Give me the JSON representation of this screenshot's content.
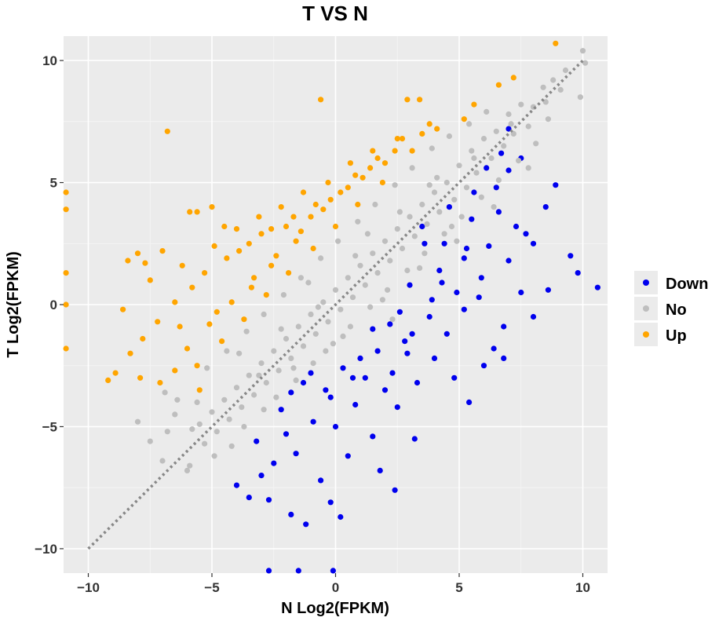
{
  "chart_data": {
    "type": "scatter",
    "title": "T VS N",
    "xlabel": "N  Log2(FPKM)",
    "ylabel": "T  Log2(FPKM)",
    "xlim": [
      -11,
      11
    ],
    "ylim": [
      -11,
      11
    ],
    "xticks": [
      -10,
      -5,
      0,
      5,
      10
    ],
    "yticks": [
      -10,
      -5,
      0,
      5,
      10
    ],
    "xtick_labels": [
      "−10",
      "−5",
      "0",
      "5",
      "10"
    ],
    "ytick_labels": [
      "−10",
      "−5",
      "0",
      "5",
      "10"
    ],
    "grid": true,
    "reference_line": {
      "type": "diagonal",
      "slope": 1,
      "intercept": 0,
      "style": "dotted",
      "color": "#888888"
    },
    "legend": {
      "position": "right"
    },
    "series": [
      {
        "name": "Down",
        "color": "#0000EE",
        "points": [
          [
            10.6,
            0.7
          ],
          [
            9.8,
            1.3
          ],
          [
            9.5,
            2.0
          ],
          [
            8.6,
            0.6
          ],
          [
            8.5,
            4.0
          ],
          [
            8.0,
            2.5
          ],
          [
            8.0,
            -0.5
          ],
          [
            7.7,
            2.9
          ],
          [
            7.0,
            7.2
          ],
          [
            7.0,
            5.5
          ],
          [
            6.7,
            6.2
          ],
          [
            6.5,
            4.8
          ],
          [
            7.3,
            3.2
          ],
          [
            7.0,
            1.8
          ],
          [
            7.5,
            0.5
          ],
          [
            6.8,
            -0.9
          ],
          [
            6.4,
            -1.8
          ],
          [
            6.0,
            -2.5
          ],
          [
            5.8,
            0.3
          ],
          [
            6.2,
            2.4
          ],
          [
            5.5,
            3.5
          ],
          [
            5.2,
            1.9
          ],
          [
            4.9,
            0.5
          ],
          [
            4.5,
            -1.2
          ],
          [
            4.8,
            -3.0
          ],
          [
            4.0,
            -2.2
          ],
          [
            3.8,
            -0.5
          ],
          [
            4.2,
            1.4
          ],
          [
            3.6,
            2.5
          ],
          [
            3.0,
            0.8
          ],
          [
            2.8,
            -1.5
          ],
          [
            3.3,
            -3.2
          ],
          [
            2.5,
            -4.2
          ],
          [
            2.9,
            -2.0
          ],
          [
            2.2,
            -0.8
          ],
          [
            1.7,
            -1.9
          ],
          [
            2.0,
            -3.5
          ],
          [
            1.5,
            -5.4
          ],
          [
            1.2,
            -3.0
          ],
          [
            0.8,
            -4.1
          ],
          [
            0.3,
            -2.6
          ],
          [
            0.5,
            -6.2
          ],
          [
            0.0,
            -5.0
          ],
          [
            -0.4,
            -3.5
          ],
          [
            -0.6,
            -7.2
          ],
          [
            -0.2,
            -8.1
          ],
          [
            0.2,
            -8.7
          ],
          [
            -0.9,
            -4.8
          ],
          [
            -1.3,
            -3.2
          ],
          [
            -1.6,
            -6.1
          ],
          [
            -1.8,
            -8.6
          ],
          [
            -2.0,
            -5.3
          ],
          [
            -2.5,
            -6.5
          ],
          [
            -2.7,
            -8.0
          ],
          [
            -3.0,
            -7.0
          ],
          [
            -3.2,
            -5.6
          ],
          [
            -3.5,
            -7.9
          ],
          [
            -4.0,
            -7.4
          ],
          [
            -1.2,
            -9.0
          ],
          [
            -1.5,
            -10.9
          ],
          [
            -0.1,
            -10.9
          ],
          [
            -2.7,
            -10.9
          ],
          [
            3.2,
            -5.5
          ],
          [
            2.4,
            -7.6
          ],
          [
            1.8,
            -6.8
          ],
          [
            5.4,
            -4.0
          ],
          [
            6.8,
            -2.2
          ],
          [
            5.2,
            -0.2
          ],
          [
            4.4,
            2.5
          ],
          [
            3.5,
            3.2
          ],
          [
            4.6,
            4.0
          ],
          [
            5.6,
            4.6
          ],
          [
            6.1,
            5.6
          ],
          [
            7.5,
            6.0
          ],
          [
            8.9,
            4.9
          ],
          [
            3.9,
            0.2
          ],
          [
            2.6,
            -0.3
          ],
          [
            1.5,
            -1.0
          ],
          [
            1.0,
            -2.2
          ],
          [
            -0.2,
            -3.8
          ],
          [
            -1.0,
            -2.8
          ],
          [
            -2.2,
            -4.3
          ],
          [
            -1.8,
            -3.6
          ],
          [
            0.7,
            -3.0
          ],
          [
            2.3,
            -2.8
          ],
          [
            3.1,
            -1.2
          ],
          [
            4.3,
            0.9
          ],
          [
            5.3,
            2.3
          ],
          [
            6.6,
            3.8
          ],
          [
            5.9,
            1.1
          ]
        ]
      },
      {
        "name": "No",
        "color": "#BEBEBE",
        "points": [
          [
            10.0,
            10.4
          ],
          [
            10.1,
            9.9
          ],
          [
            9.9,
            8.5
          ],
          [
            9.3,
            9.6
          ],
          [
            8.8,
            9.2
          ],
          [
            8.5,
            8.3
          ],
          [
            8.4,
            8.9
          ],
          [
            8.0,
            8.1
          ],
          [
            7.8,
            7.3
          ],
          [
            7.5,
            8.2
          ],
          [
            7.2,
            7.0
          ],
          [
            7.0,
            7.8
          ],
          [
            6.8,
            6.5
          ],
          [
            6.5,
            7.1
          ],
          [
            6.3,
            6.0
          ],
          [
            6.0,
            6.8
          ],
          [
            5.7,
            5.4
          ],
          [
            5.5,
            6.3
          ],
          [
            5.3,
            4.8
          ],
          [
            5.0,
            5.7
          ],
          [
            4.8,
            4.3
          ],
          [
            4.5,
            5.0
          ],
          [
            4.2,
            3.8
          ],
          [
            4.0,
            4.6
          ],
          [
            3.7,
            3.3
          ],
          [
            3.5,
            4.1
          ],
          [
            3.2,
            2.8
          ],
          [
            3.0,
            3.6
          ],
          [
            2.7,
            2.3
          ],
          [
            2.5,
            3.1
          ],
          [
            2.2,
            1.8
          ],
          [
            2.0,
            2.6
          ],
          [
            1.7,
            1.3
          ],
          [
            1.5,
            2.1
          ],
          [
            1.2,
            0.8
          ],
          [
            1.0,
            1.6
          ],
          [
            0.7,
            0.3
          ],
          [
            0.5,
            1.1
          ],
          [
            0.2,
            -0.2
          ],
          [
            0.0,
            0.6
          ],
          [
            -0.3,
            -0.7
          ],
          [
            -0.5,
            0.1
          ],
          [
            -0.8,
            -1.2
          ],
          [
            -1.0,
            -0.4
          ],
          [
            -1.3,
            -1.7
          ],
          [
            -1.5,
            -0.9
          ],
          [
            -1.8,
            -2.2
          ],
          [
            -2.0,
            -1.4
          ],
          [
            -2.3,
            -2.7
          ],
          [
            -2.5,
            -1.9
          ],
          [
            -2.8,
            -3.2
          ],
          [
            -3.0,
            -2.4
          ],
          [
            -3.3,
            -3.7
          ],
          [
            -3.5,
            -2.9
          ],
          [
            -3.8,
            -4.2
          ],
          [
            -4.0,
            -3.4
          ],
          [
            -4.3,
            -4.7
          ],
          [
            -4.5,
            -3.9
          ],
          [
            -4.8,
            -5.2
          ],
          [
            -5.0,
            -4.4
          ],
          [
            -5.3,
            -5.7
          ],
          [
            -5.5,
            -4.9
          ],
          [
            -5.8,
            -5.1
          ],
          [
            -6.0,
            -6.8
          ],
          [
            -6.5,
            -4.5
          ],
          [
            -6.8,
            -5.2
          ],
          [
            -7.0,
            -6.4
          ],
          [
            -5.6,
            -4.0
          ],
          [
            -4.2,
            -5.8
          ],
          [
            -3.7,
            -5.0
          ],
          [
            -2.9,
            -4.3
          ],
          [
            -2.4,
            -3.8
          ],
          [
            -1.6,
            -3.1
          ],
          [
            -0.9,
            -2.4
          ],
          [
            -0.1,
            -1.6
          ],
          [
            0.6,
            -0.9
          ],
          [
            1.4,
            -0.1
          ],
          [
            2.1,
            0.6
          ],
          [
            2.9,
            1.4
          ],
          [
            3.6,
            2.1
          ],
          [
            4.4,
            2.9
          ],
          [
            5.1,
            3.6
          ],
          [
            5.9,
            4.4
          ],
          [
            6.6,
            5.1
          ],
          [
            7.4,
            5.9
          ],
          [
            8.1,
            6.6
          ],
          [
            -5.2,
            -2.6
          ],
          [
            -4.4,
            -1.9
          ],
          [
            -3.6,
            -1.1
          ],
          [
            -2.9,
            -0.4
          ],
          [
            -2.1,
            0.4
          ],
          [
            -1.4,
            1.1
          ],
          [
            -0.6,
            1.9
          ],
          [
            0.1,
            2.6
          ],
          [
            0.9,
            3.4
          ],
          [
            1.6,
            4.1
          ],
          [
            2.4,
            4.9
          ],
          [
            3.1,
            5.6
          ],
          [
            3.9,
            6.4
          ],
          [
            4.6,
            6.9
          ],
          [
            5.4,
            7.4
          ],
          [
            6.1,
            7.9
          ],
          [
            -3.9,
            -2.0
          ],
          [
            -3.1,
            -2.9
          ],
          [
            -2.2,
            -1.0
          ],
          [
            -1.7,
            -2.6
          ],
          [
            -0.7,
            -0.1
          ],
          [
            0.3,
            -1.3
          ],
          [
            0.8,
            2.0
          ],
          [
            1.9,
            0.2
          ],
          [
            2.6,
            3.8
          ],
          [
            3.4,
            1.5
          ],
          [
            4.1,
            5.2
          ],
          [
            4.9,
            2.6
          ],
          [
            5.6,
            6.0
          ],
          [
            6.4,
            4.0
          ],
          [
            7.1,
            7.4
          ],
          [
            7.8,
            5.6
          ],
          [
            8.6,
            7.6
          ],
          [
            9.1,
            8.8
          ],
          [
            -1.1,
            0.9
          ],
          [
            -0.4,
            -1.9
          ],
          [
            1.3,
            2.9
          ],
          [
            2.3,
            -0.6
          ],
          [
            3.8,
            4.9
          ],
          [
            4.7,
            3.2
          ],
          [
            -6.4,
            -3.9
          ],
          [
            -7.5,
            -5.6
          ],
          [
            -5.9,
            -6.6
          ],
          [
            -4.9,
            -6.2
          ],
          [
            -8.0,
            -4.8
          ],
          [
            -6.9,
            -3.6
          ]
        ]
      },
      {
        "name": "Up",
        "color": "#FFA500",
        "points": [
          [
            8.9,
            10.7
          ],
          [
            7.2,
            9.3
          ],
          [
            6.6,
            9.0
          ],
          [
            5.6,
            8.2
          ],
          [
            5.2,
            7.6
          ],
          [
            4.1,
            7.2
          ],
          [
            3.4,
            8.4
          ],
          [
            3.5,
            7.0
          ],
          [
            2.9,
            8.4
          ],
          [
            3.1,
            6.3
          ],
          [
            2.5,
            6.8
          ],
          [
            2.0,
            5.8
          ],
          [
            1.5,
            6.3
          ],
          [
            1.1,
            5.2
          ],
          [
            0.6,
            5.8
          ],
          [
            0.2,
            4.6
          ],
          [
            -0.3,
            5.0
          ],
          [
            -0.8,
            4.1
          ],
          [
            -1.3,
            4.6
          ],
          [
            -0.6,
            8.4
          ],
          [
            -1.7,
            3.6
          ],
          [
            -2.2,
            4.0
          ],
          [
            -2.6,
            3.1
          ],
          [
            -3.1,
            3.6
          ],
          [
            -3.5,
            2.5
          ],
          [
            -4.0,
            3.1
          ],
          [
            -4.4,
            1.9
          ],
          [
            -4.9,
            2.4
          ],
          [
            -5.3,
            1.3
          ],
          [
            -5.6,
            3.8
          ],
          [
            -5.8,
            0.7
          ],
          [
            -6.2,
            1.6
          ],
          [
            -6.5,
            0.1
          ],
          [
            -7.0,
            2.2
          ],
          [
            -7.2,
            -0.7
          ],
          [
            -7.5,
            1.0
          ],
          [
            -7.8,
            -1.4
          ],
          [
            -8.0,
            2.1
          ],
          [
            -8.3,
            -2.0
          ],
          [
            -8.6,
            -0.2
          ],
          [
            -8.9,
            -2.8
          ],
          [
            -9.2,
            -3.1
          ],
          [
            -6.0,
            -1.8
          ],
          [
            -5.6,
            -2.5
          ],
          [
            -5.1,
            -0.8
          ],
          [
            -4.6,
            -1.5
          ],
          [
            -4.2,
            0.1
          ],
          [
            -3.7,
            -0.6
          ],
          [
            -3.3,
            1.1
          ],
          [
            -2.8,
            0.4
          ],
          [
            -2.4,
            2.0
          ],
          [
            -1.9,
            1.3
          ],
          [
            -1.4,
            3.0
          ],
          [
            -0.9,
            2.3
          ],
          [
            -0.5,
            3.9
          ],
          [
            0.0,
            3.2
          ],
          [
            0.5,
            4.8
          ],
          [
            0.9,
            4.1
          ],
          [
            1.4,
            5.6
          ],
          [
            1.9,
            5.0
          ],
          [
            2.4,
            6.3
          ],
          [
            -6.8,
            7.1
          ],
          [
            -10.9,
            3.9
          ],
          [
            -10.9,
            4.6
          ],
          [
            -10.9,
            1.3
          ],
          [
            -10.9,
            0.0
          ],
          [
            -10.9,
            -1.8
          ],
          [
            -8.4,
            1.8
          ],
          [
            -7.7,
            1.7
          ],
          [
            -6.5,
            -2.7
          ],
          [
            -5.5,
            -3.5
          ],
          [
            -7.1,
            -3.2
          ],
          [
            -5.9,
            3.8
          ],
          [
            -5.0,
            4.0
          ],
          [
            -4.5,
            3.2
          ],
          [
            -3.9,
            2.2
          ],
          [
            -3.0,
            2.9
          ],
          [
            -2.0,
            3.2
          ],
          [
            -1.0,
            3.6
          ],
          [
            -0.2,
            4.3
          ],
          [
            0.8,
            5.3
          ],
          [
            1.7,
            6.0
          ],
          [
            2.7,
            6.8
          ],
          [
            3.8,
            7.4
          ],
          [
            -4.8,
            -0.3
          ],
          [
            -6.3,
            -0.9
          ],
          [
            -3.4,
            0.7
          ],
          [
            -2.6,
            1.6
          ],
          [
            -1.6,
            2.6
          ],
          [
            -7.9,
            -3.0
          ]
        ]
      }
    ]
  }
}
